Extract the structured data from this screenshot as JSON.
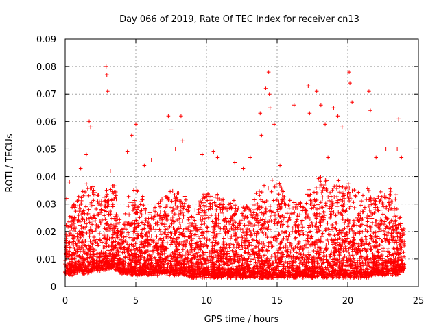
{
  "chart_data": {
    "type": "scatter",
    "title": "Day 066 of 2019, Rate Of TEC Index for receiver cn13",
    "xlabel": "GPS time / hours",
    "ylabel": "ROTI / TECUs",
    "xlim": [
      0,
      25
    ],
    "ylim": [
      0,
      0.09
    ],
    "xticks": [
      0,
      5,
      10,
      15,
      20,
      25
    ],
    "yticks": [
      "0",
      "0.01",
      "0.02",
      "0.03",
      "0.04",
      "0.05",
      "0.06",
      "0.07",
      "0.08",
      "0.09"
    ],
    "grid": true,
    "marker": "+",
    "series": [
      {
        "name": "ROTI",
        "color": "#ff0000",
        "x": [
          0.1,
          0.3,
          0.5,
          1.1,
          1.5,
          1.7,
          1.8,
          2.9,
          2.95,
          3.0,
          3.2,
          4.4,
          4.7,
          5.0,
          5.6,
          6.1,
          7.3,
          7.5,
          7.8,
          8.2,
          8.3,
          9.7,
          10.5,
          10.8,
          12.0,
          12.6,
          13.1,
          13.8,
          13.9,
          14.2,
          14.4,
          14.45,
          14.5,
          14.8,
          15.2,
          16.2,
          17.2,
          17.3,
          17.8,
          18.1,
          18.4,
          18.6,
          19.0,
          19.3,
          19.6,
          20.1,
          20.15,
          20.3,
          21.5,
          21.6,
          22.0,
          22.7,
          23.5,
          23.6,
          23.8
        ],
        "y": [
          0.032,
          0.038,
          0.024,
          0.043,
          0.048,
          0.06,
          0.058,
          0.08,
          0.077,
          0.071,
          0.042,
          0.049,
          0.055,
          0.059,
          0.044,
          0.046,
          0.062,
          0.057,
          0.05,
          0.062,
          0.053,
          0.048,
          0.049,
          0.047,
          0.045,
          0.043,
          0.047,
          0.063,
          0.055,
          0.072,
          0.078,
          0.07,
          0.065,
          0.059,
          0.044,
          0.066,
          0.073,
          0.063,
          0.071,
          0.066,
          0.059,
          0.047,
          0.065,
          0.062,
          0.058,
          0.078,
          0.074,
          0.067,
          0.071,
          0.064,
          0.047,
          0.05,
          0.05,
          0.061,
          0.047
        ],
        "background_envelope": {
          "x": [
            0,
            0.5,
            1.0,
            1.5,
            2.0,
            2.5,
            3.0,
            3.5,
            4.0,
            4.5,
            5.0,
            5.5,
            6.0,
            6.5,
            7.0,
            7.5,
            8.0,
            8.5,
            9.0,
            9.5,
            10.0,
            10.5,
            11.0,
            11.5,
            12.0,
            12.5,
            13.0,
            13.5,
            14.0,
            14.5,
            15.0,
            15.5,
            16.0,
            16.5,
            17.0,
            17.5,
            18.0,
            18.5,
            19.0,
            19.5,
            20.0,
            20.5,
            21.0,
            21.5,
            22.0,
            22.5,
            23.0,
            23.5,
            24.0
          ],
          "y_low": [
            0.005,
            0.005,
            0.006,
            0.005,
            0.006,
            0.006,
            0.007,
            0.007,
            0.005,
            0.005,
            0.005,
            0.005,
            0.005,
            0.005,
            0.005,
            0.005,
            0.005,
            0.005,
            0.004,
            0.004,
            0.004,
            0.004,
            0.004,
            0.004,
            0.004,
            0.004,
            0.004,
            0.004,
            0.004,
            0.004,
            0.004,
            0.004,
            0.004,
            0.004,
            0.004,
            0.004,
            0.004,
            0.004,
            0.004,
            0.004,
            0.004,
            0.004,
            0.004,
            0.004,
            0.005,
            0.005,
            0.005,
            0.005,
            0.006
          ],
          "y_high": [
            0.022,
            0.03,
            0.033,
            0.038,
            0.036,
            0.034,
            0.035,
            0.038,
            0.02,
            0.033,
            0.036,
            0.033,
            0.026,
            0.03,
            0.033,
            0.036,
            0.035,
            0.034,
            0.025,
            0.031,
            0.036,
            0.035,
            0.033,
            0.03,
            0.032,
            0.029,
            0.03,
            0.034,
            0.037,
            0.04,
            0.041,
            0.034,
            0.032,
            0.03,
            0.035,
            0.035,
            0.04,
            0.04,
            0.037,
            0.038,
            0.038,
            0.035,
            0.034,
            0.036,
            0.033,
            0.035,
            0.035,
            0.032,
            0.02
          ]
        }
      }
    ]
  }
}
